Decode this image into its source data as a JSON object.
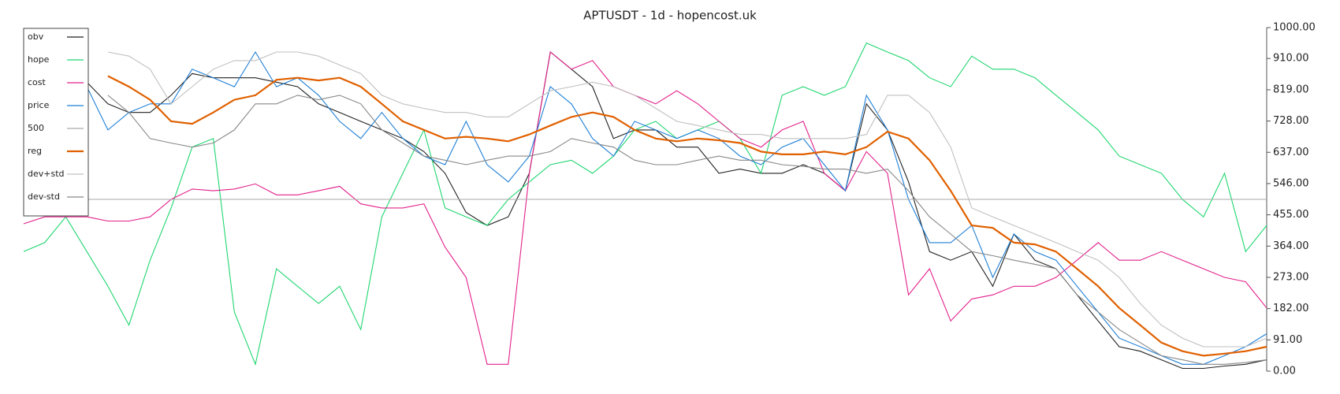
{
  "chart_data": {
    "type": "line",
    "title": "APTUSDT - 1d - hopencost.uk",
    "ylim": [
      0,
      1000
    ],
    "yticks": [
      {
        "value": 0,
        "label": "0.00"
      },
      {
        "value": 91,
        "label": "91.00"
      },
      {
        "value": 182,
        "label": "182.00"
      },
      {
        "value": 273,
        "label": "273.00"
      },
      {
        "value": 364,
        "label": "364.00"
      },
      {
        "value": 455,
        "label": "455.00"
      },
      {
        "value": 546,
        "label": "546.00"
      },
      {
        "value": 637,
        "label": "637.00"
      },
      {
        "value": 728,
        "label": "728.00"
      },
      {
        "value": 819,
        "label": "819.00"
      },
      {
        "value": 910,
        "label": "910.00"
      },
      {
        "value": 1000,
        "label": "1000.00"
      }
    ],
    "legend": "upper left",
    "series": [
      {
        "name": "obv",
        "color": "#222222",
        "values": [
          null,
          null,
          null,
          841,
          778,
          753,
          753,
          803,
          866,
          854,
          854,
          854,
          841,
          828,
          778,
          753,
          727,
          702,
          677,
          639,
          576,
          462,
          424,
          449,
          576,
          929,
          879,
          828,
          677,
          702,
          702,
          652,
          652,
          576,
          588,
          576,
          576,
          601,
          576,
          525,
          778,
          702,
          551,
          348,
          323,
          348,
          247,
          399,
          323,
          298,
          222,
          146,
          71,
          58,
          33,
          8,
          8,
          15,
          20,
          33
        ]
      },
      {
        "name": "hope",
        "color": "#1fd66f",
        "values": [
          348,
          374,
          449,
          348,
          247,
          134,
          323,
          475,
          652,
          677,
          172,
          20,
          298,
          247,
          197,
          247,
          121,
          449,
          576,
          702,
          475,
          449,
          424,
          500,
          551,
          601,
          614,
          576,
          626,
          702,
          727,
          677,
          702,
          727,
          677,
          576,
          803,
          828,
          803,
          828,
          955,
          929,
          904,
          854,
          828,
          917,
          879,
          879,
          854,
          803,
          753,
          702,
          626,
          601,
          576,
          500,
          449,
          576,
          348,
          424
        ]
      },
      {
        "name": "cost",
        "color": "#e3218b",
        "values": [
          429,
          449,
          449,
          449,
          437,
          437,
          449,
          500,
          530,
          525,
          530,
          545,
          513,
          513,
          525,
          538,
          487,
          475,
          475,
          487,
          361,
          273,
          20,
          20,
          576,
          929,
          879,
          904,
          828,
          803,
          778,
          816,
          778,
          727,
          677,
          652,
          702,
          727,
          576,
          525,
          639,
          576,
          222,
          298,
          146,
          210,
          222,
          247,
          247,
          273,
          323,
          374,
          323,
          323,
          348,
          323,
          298,
          273,
          260,
          184
        ]
      },
      {
        "name": "price",
        "color": "#1f7fd6",
        "values": [
          null,
          null,
          null,
          828,
          702,
          753,
          778,
          778,
          879,
          854,
          828,
          929,
          828,
          854,
          803,
          727,
          677,
          753,
          677,
          626,
          601,
          727,
          601,
          551,
          626,
          828,
          778,
          677,
          626,
          727,
          702,
          677,
          702,
          677,
          626,
          601,
          652,
          677,
          601,
          525,
          803,
          702,
          500,
          374,
          374,
          424,
          273,
          399,
          348,
          323,
          247,
          172,
          96,
          71,
          45,
          20,
          20,
          45,
          71,
          109
        ]
      },
      {
        "name": "500",
        "color": "#aaaaaa",
        "values": [
          500,
          500,
          500,
          500,
          500,
          500,
          500,
          500,
          500,
          500,
          500,
          500,
          500,
          500,
          500,
          500,
          500,
          500,
          500,
          500,
          500,
          500,
          500,
          500,
          500,
          500,
          500,
          500,
          500,
          500,
          500,
          500,
          500,
          500,
          500,
          500,
          500,
          500,
          500,
          500,
          500,
          500,
          500,
          500,
          500,
          500,
          500,
          500,
          500,
          500,
          500,
          500,
          500,
          500,
          500,
          500,
          500,
          500,
          500,
          500
        ]
      },
      {
        "name": "reg",
        "color": "#e06000",
        "values": [
          null,
          null,
          null,
          null,
          859,
          828,
          790,
          727,
          720,
          753,
          790,
          803,
          848,
          854,
          846,
          854,
          828,
          778,
          727,
          702,
          677,
          682,
          677,
          669,
          689,
          715,
          740,
          753,
          740,
          702,
          677,
          669,
          677,
          672,
          664,
          639,
          631,
          631,
          639,
          631,
          652,
          697,
          677,
          614,
          525,
          424,
          417,
          374,
          369,
          348,
          298,
          247,
          184,
          134,
          83,
          58,
          45,
          51,
          58,
          71
        ]
      },
      {
        "name": "dev+std",
        "color": "#c0c0c0",
        "values": [
          null,
          null,
          null,
          null,
          929,
          917,
          879,
          778,
          828,
          879,
          904,
          904,
          929,
          929,
          917,
          891,
          866,
          803,
          778,
          765,
          753,
          753,
          740,
          740,
          778,
          816,
          828,
          841,
          828,
          803,
          765,
          727,
          715,
          702,
          689,
          689,
          677,
          677,
          677,
          677,
          689,
          803,
          803,
          753,
          652,
          475,
          449,
          424,
          399,
          374,
          348,
          323,
          273,
          197,
          134,
          96,
          71,
          71,
          71,
          96
        ]
      },
      {
        "name": "dev-std",
        "color": "#888888",
        "values": [
          null,
          null,
          null,
          null,
          803,
          753,
          677,
          664,
          652,
          664,
          702,
          778,
          778,
          803,
          790,
          803,
          778,
          702,
          664,
          626,
          614,
          601,
          614,
          626,
          626,
          639,
          677,
          664,
          652,
          614,
          601,
          601,
          614,
          626,
          614,
          614,
          601,
          596,
          588,
          588,
          576,
          588,
          525,
          449,
          399,
          348,
          336,
          323,
          311,
          298,
          222,
          172,
          121,
          83,
          45,
          33,
          20,
          20,
          25,
          33
        ]
      }
    ]
  }
}
